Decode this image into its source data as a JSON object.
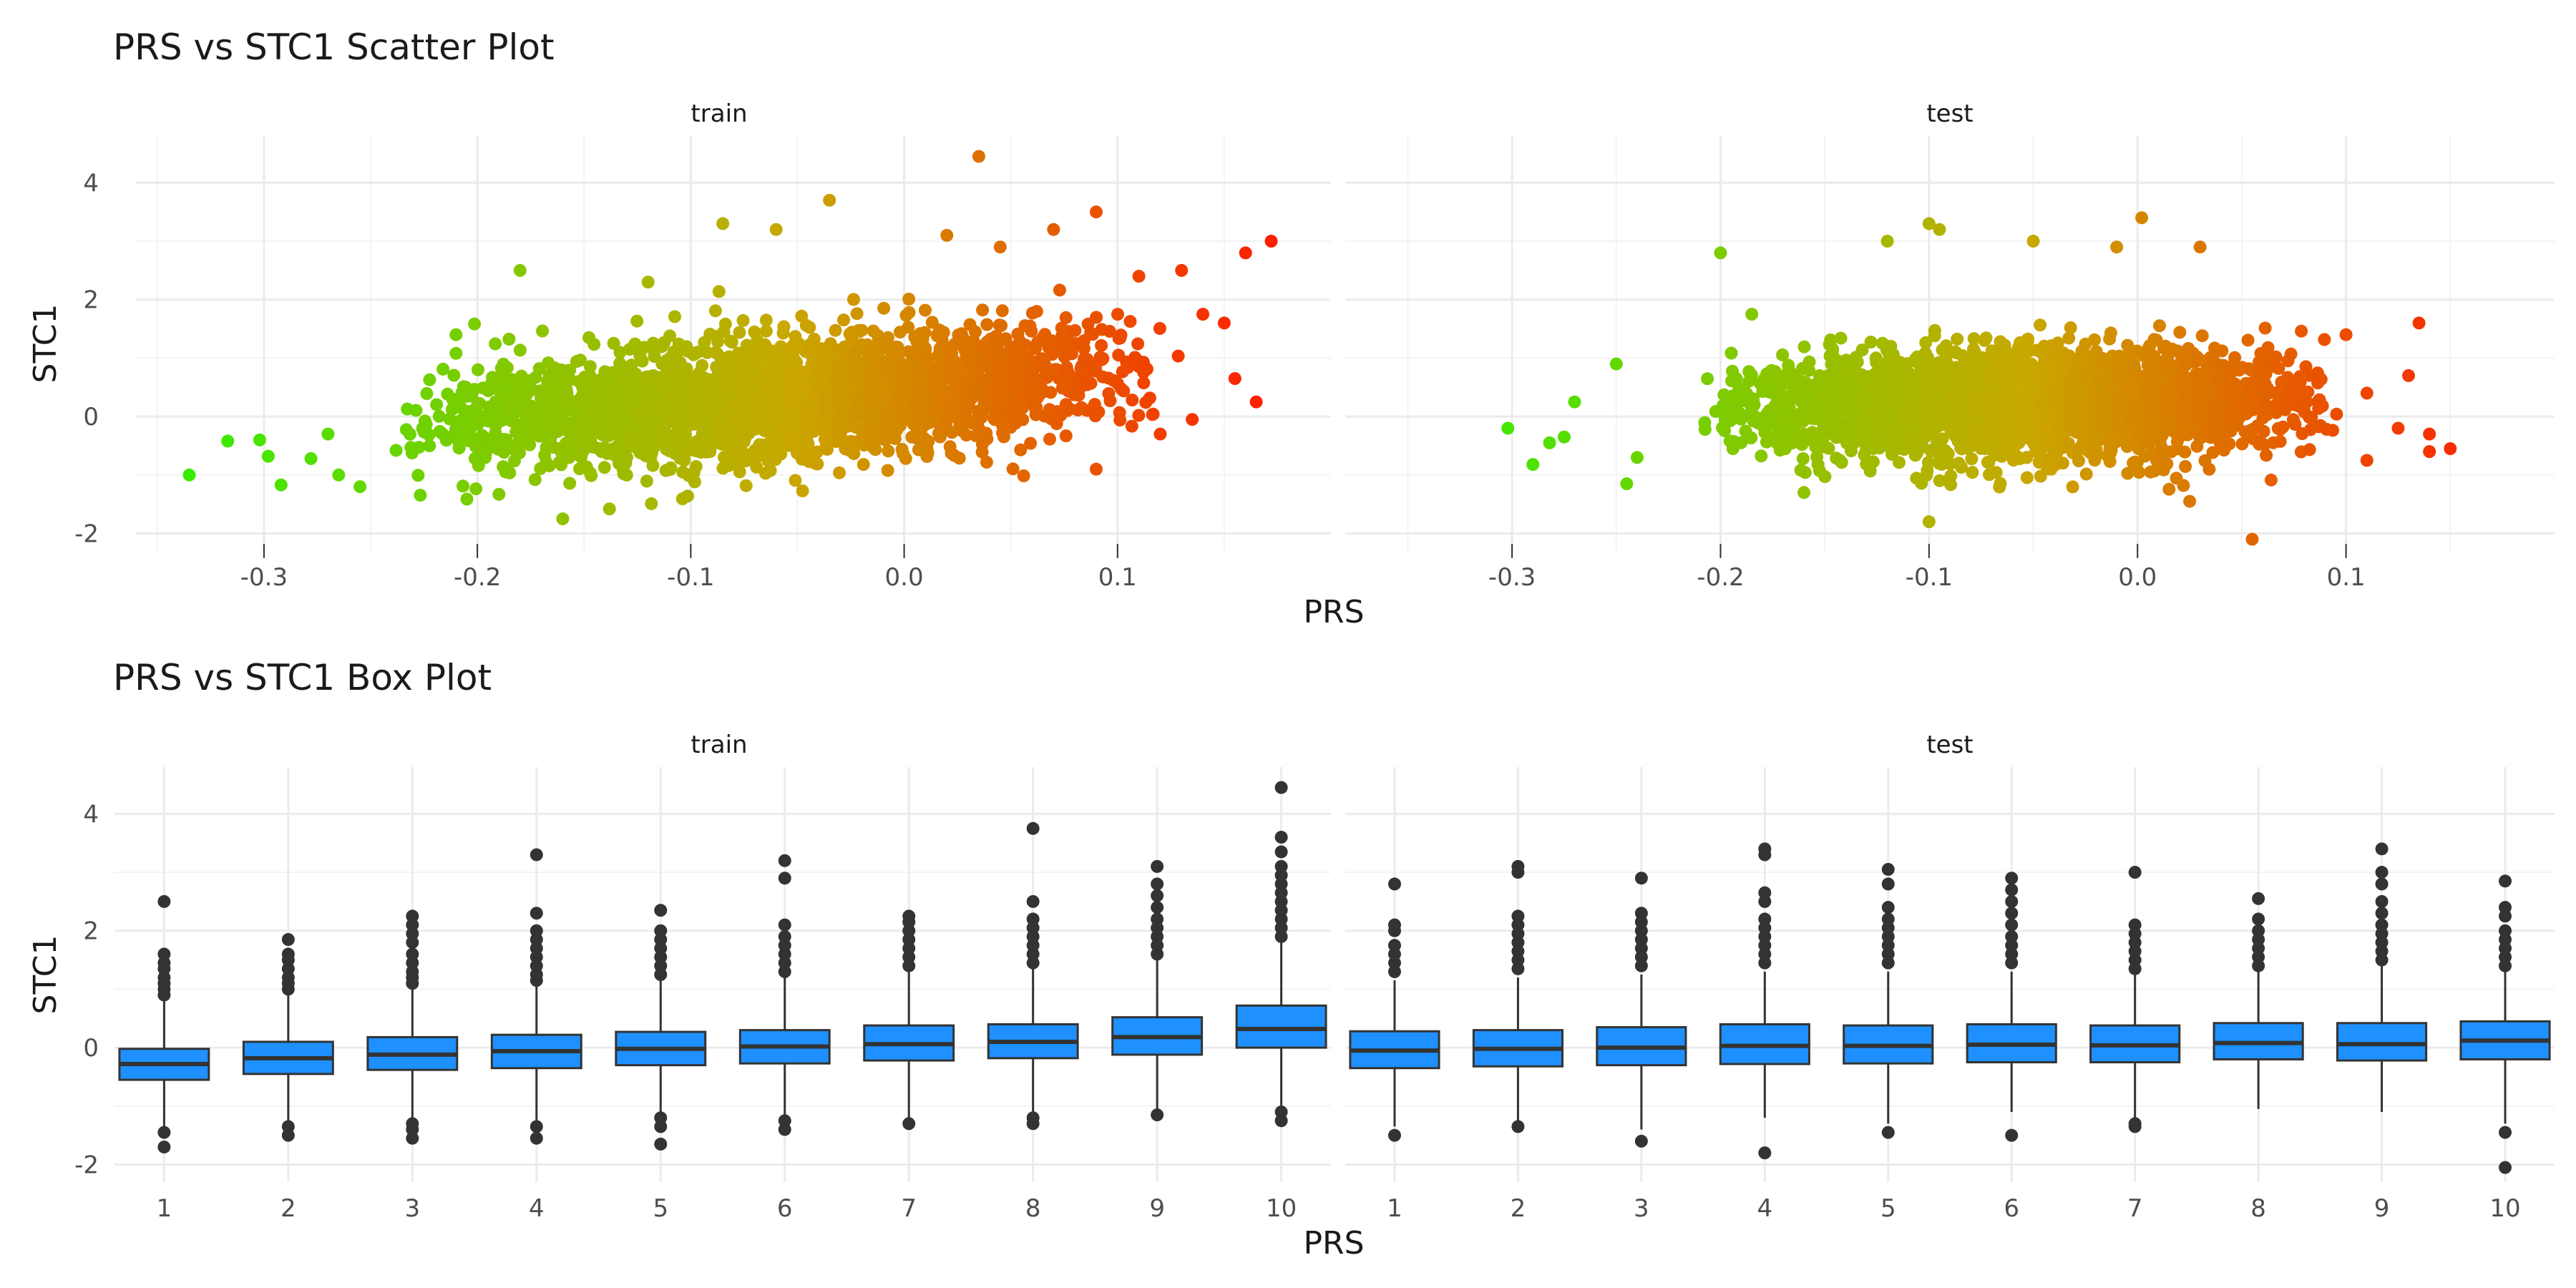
{
  "chart_data": [
    {
      "type": "scatter",
      "title": "PRS vs STC1 Scatter Plot",
      "xlabel": "PRS",
      "ylabel": "STC1",
      "color_low": "#33ee00",
      "color_mid": "#c8a800",
      "color_high": "#ff1a00",
      "grid": true,
      "legend": "none",
      "panels": [
        {
          "name": "train",
          "xlim": [
            -0.35,
            0.2
          ],
          "ylim": [
            -2.3,
            4.8
          ],
          "xticks": [
            -0.3,
            -0.2,
            -0.1,
            0.0,
            0.1
          ],
          "xtick_labels": [
            "-0.3",
            "-0.2",
            "-0.1",
            "0.0",
            "0.1"
          ],
          "yticks": [
            -2,
            0,
            2,
            4
          ],
          "ytick_labels": [
            "-2",
            "0",
            "2",
            "4"
          ],
          "cloud": {
            "x_min": -0.245,
            "x_max": 0.13,
            "low_at_min": -0.55,
            "low_at_max": 0.55,
            "spread": 0.95
          },
          "points": [
            {
              "x": -0.335,
              "y": -1.0
            },
            {
              "x": -0.317,
              "y": -0.42
            },
            {
              "x": -0.302,
              "y": -0.4
            },
            {
              "x": -0.298,
              "y": -0.68
            },
            {
              "x": -0.292,
              "y": -1.17
            },
            {
              "x": -0.278,
              "y": -0.72
            },
            {
              "x": -0.27,
              "y": -0.3
            },
            {
              "x": -0.265,
              "y": -1.0
            },
            {
              "x": -0.255,
              "y": -1.2
            },
            {
              "x": -0.21,
              "y": 1.4
            },
            {
              "x": -0.18,
              "y": 2.5
            },
            {
              "x": -0.16,
              "y": -1.75
            },
            {
              "x": -0.12,
              "y": 2.3
            },
            {
              "x": -0.085,
              "y": 3.3
            },
            {
              "x": -0.06,
              "y": 3.2
            },
            {
              "x": -0.035,
              "y": 3.7
            },
            {
              "x": 0.035,
              "y": 4.45
            },
            {
              "x": 0.02,
              "y": 3.1
            },
            {
              "x": 0.045,
              "y": 2.9
            },
            {
              "x": 0.07,
              "y": 3.2
            },
            {
              "x": 0.09,
              "y": 3.5
            },
            {
              "x": 0.11,
              "y": 2.4
            },
            {
              "x": 0.13,
              "y": 2.5
            },
            {
              "x": 0.12,
              "y": -0.3
            },
            {
              "x": 0.14,
              "y": 1.75
            },
            {
              "x": 0.15,
              "y": 1.6
            },
            {
              "x": 0.155,
              "y": 0.65
            },
            {
              "x": 0.16,
              "y": 2.8
            },
            {
              "x": 0.165,
              "y": 0.25
            },
            {
              "x": 0.172,
              "y": 3.0
            },
            {
              "x": 0.09,
              "y": -0.9
            },
            {
              "x": 0.135,
              "y": -0.05
            }
          ]
        },
        {
          "name": "test",
          "xlim": [
            -0.35,
            0.2
          ],
          "ylim": [
            -2.3,
            4.8
          ],
          "xticks": [
            -0.3,
            -0.2,
            -0.1,
            0.0,
            0.1
          ],
          "xtick_labels": [
            "-0.3",
            "-0.2",
            "-0.1",
            "0.0",
            "0.1"
          ],
          "yticks": [
            -2,
            0,
            2,
            4
          ],
          "ytick_labels": [
            "-2",
            "0",
            "2",
            "4"
          ],
          "cloud": {
            "x_min": -0.21,
            "x_max": 0.1,
            "low_at_min": -0.15,
            "low_at_max": 0.0,
            "spread": 0.85
          },
          "points": [
            {
              "x": -0.302,
              "y": -0.2
            },
            {
              "x": -0.29,
              "y": -0.82
            },
            {
              "x": -0.282,
              "y": -0.45
            },
            {
              "x": -0.275,
              "y": -0.35
            },
            {
              "x": -0.27,
              "y": 0.25
            },
            {
              "x": -0.25,
              "y": 0.9
            },
            {
              "x": -0.24,
              "y": -0.7
            },
            {
              "x": -0.245,
              "y": -1.15
            },
            {
              "x": -0.2,
              "y": 2.8
            },
            {
              "x": -0.185,
              "y": 1.75
            },
            {
              "x": -0.16,
              "y": -1.3
            },
            {
              "x": -0.12,
              "y": 3.0
            },
            {
              "x": -0.1,
              "y": 3.3
            },
            {
              "x": -0.095,
              "y": 3.2
            },
            {
              "x": -0.1,
              "y": -1.8
            },
            {
              "x": -0.05,
              "y": 3.0
            },
            {
              "x": -0.01,
              "y": 2.9
            },
            {
              "x": 0.002,
              "y": 3.4
            },
            {
              "x": 0.03,
              "y": 2.9
            },
            {
              "x": 0.055,
              "y": -2.1
            },
            {
              "x": 0.025,
              "y": -1.45
            },
            {
              "x": 0.1,
              "y": 1.4
            },
            {
              "x": 0.11,
              "y": 0.4
            },
            {
              "x": 0.125,
              "y": -0.2
            },
            {
              "x": 0.13,
              "y": 0.7
            },
            {
              "x": 0.135,
              "y": 1.6
            },
            {
              "x": 0.14,
              "y": -0.3
            },
            {
              "x": 0.14,
              "y": -0.6
            },
            {
              "x": 0.15,
              "y": -0.55
            },
            {
              "x": 0.11,
              "y": -0.75
            }
          ]
        }
      ]
    },
    {
      "type": "box",
      "title": "PRS vs STC1 Box Plot",
      "xlabel": "PRS",
      "ylabel": "STC1",
      "box_fill": "#1e90ff",
      "box_stroke": "#333333",
      "grid": true,
      "legend": "none",
      "panels": [
        {
          "name": "train",
          "ylim": [
            -2.3,
            4.8
          ],
          "yticks": [
            -2,
            0,
            2,
            4
          ],
          "ytick_labels": [
            "-2",
            "0",
            "2",
            "4"
          ],
          "categories": [
            "1",
            "2",
            "3",
            "4",
            "5",
            "6",
            "7",
            "8",
            "9",
            "10"
          ],
          "boxes": [
            {
              "q1": -0.55,
              "median": -0.28,
              "q3": -0.02,
              "whisker_low": -1.35,
              "whisker_high": 0.8,
              "outliers": [
                -1.45,
                -1.7,
                0.9,
                1.0,
                1.1,
                1.2,
                1.35,
                1.45,
                1.6,
                2.5
              ]
            },
            {
              "q1": -0.45,
              "median": -0.18,
              "q3": 0.1,
              "whisker_low": -1.25,
              "whisker_high": 0.9,
              "outliers": [
                -1.35,
                -1.5,
                1.0,
                1.1,
                1.2,
                1.35,
                1.5,
                1.6,
                1.85
              ]
            },
            {
              "q1": -0.38,
              "median": -0.12,
              "q3": 0.18,
              "whisker_low": -1.2,
              "whisker_high": 1.0,
              "outliers": [
                -1.3,
                -1.4,
                -1.55,
                1.1,
                1.2,
                1.3,
                1.45,
                1.6,
                1.8,
                1.95,
                2.1,
                2.25
              ]
            },
            {
              "q1": -0.35,
              "median": -0.06,
              "q3": 0.22,
              "whisker_low": -1.3,
              "whisker_high": 1.05,
              "outliers": [
                -1.35,
                -1.55,
                1.15,
                1.25,
                1.4,
                1.55,
                1.7,
                1.85,
                2.0,
                2.3,
                3.3
              ]
            },
            {
              "q1": -0.3,
              "median": -0.02,
              "q3": 0.27,
              "whisker_low": -1.1,
              "whisker_high": 1.15,
              "outliers": [
                -1.2,
                -1.35,
                -1.65,
                1.25,
                1.4,
                1.55,
                1.7,
                1.85,
                2.0,
                2.35
              ]
            },
            {
              "q1": -0.27,
              "median": 0.02,
              "q3": 0.3,
              "whisker_low": -1.15,
              "whisker_high": 1.2,
              "outliers": [
                -1.25,
                -1.4,
                1.3,
                1.45,
                1.6,
                1.75,
                1.9,
                2.1,
                2.9,
                3.2
              ]
            },
            {
              "q1": -0.22,
              "median": 0.06,
              "q3": 0.38,
              "whisker_low": -1.25,
              "whisker_high": 1.3,
              "outliers": [
                -1.3,
                1.4,
                1.55,
                1.7,
                1.85,
                2.0,
                2.15,
                2.25
              ]
            },
            {
              "q1": -0.18,
              "median": 0.1,
              "q3": 0.4,
              "whisker_low": -1.1,
              "whisker_high": 1.35,
              "outliers": [
                -1.2,
                -1.3,
                1.45,
                1.6,
                1.75,
                1.9,
                2.05,
                2.2,
                2.5,
                3.75
              ]
            },
            {
              "q1": -0.12,
              "median": 0.18,
              "q3": 0.52,
              "whisker_low": -1.05,
              "whisker_high": 1.5,
              "outliers": [
                -1.15,
                1.6,
                1.75,
                1.9,
                2.05,
                2.2,
                2.4,
                2.6,
                2.8,
                3.1
              ]
            },
            {
              "q1": 0.0,
              "median": 0.32,
              "q3": 0.72,
              "whisker_low": -1.0,
              "whisker_high": 1.8,
              "outliers": [
                -1.1,
                -1.25,
                1.9,
                2.05,
                2.2,
                2.35,
                2.5,
                2.65,
                2.8,
                2.95,
                3.1,
                3.35,
                3.6,
                4.45
              ]
            }
          ]
        },
        {
          "name": "test",
          "ylim": [
            -2.3,
            4.8
          ],
          "yticks": [
            -2,
            0,
            2,
            4
          ],
          "ytick_labels": [
            "-2",
            "0",
            "2",
            "4"
          ],
          "categories": [
            "1",
            "2",
            "3",
            "4",
            "5",
            "6",
            "7",
            "8",
            "9",
            "10"
          ],
          "boxes": [
            {
              "q1": -0.35,
              "median": -0.05,
              "q3": 0.28,
              "whisker_low": -1.35,
              "whisker_high": 1.15,
              "outliers": [
                -1.5,
                1.3,
                1.45,
                1.6,
                1.75,
                2.0,
                2.1,
                2.8
              ]
            },
            {
              "q1": -0.32,
              "median": -0.02,
              "q3": 0.3,
              "whisker_low": -1.3,
              "whisker_high": 1.2,
              "outliers": [
                -1.35,
                1.35,
                1.5,
                1.65,
                1.8,
                1.95,
                2.1,
                2.25,
                3.0,
                3.1
              ]
            },
            {
              "q1": -0.3,
              "median": 0.0,
              "q3": 0.35,
              "whisker_low": -1.4,
              "whisker_high": 1.25,
              "outliers": [
                -1.6,
                1.4,
                1.55,
                1.7,
                1.85,
                2.0,
                2.15,
                2.3,
                2.9
              ]
            },
            {
              "q1": -0.28,
              "median": 0.03,
              "q3": 0.4,
              "whisker_low": -1.2,
              "whisker_high": 1.3,
              "outliers": [
                -1.8,
                1.45,
                1.6,
                1.75,
                1.9,
                2.05,
                2.2,
                2.5,
                2.65,
                3.3,
                3.4
              ]
            },
            {
              "q1": -0.27,
              "median": 0.03,
              "q3": 0.38,
              "whisker_low": -1.3,
              "whisker_high": 1.3,
              "outliers": [
                -1.45,
                1.45,
                1.6,
                1.75,
                1.9,
                2.05,
                2.2,
                2.4,
                2.8,
                3.05
              ]
            },
            {
              "q1": -0.25,
              "median": 0.05,
              "q3": 0.4,
              "whisker_low": -1.1,
              "whisker_high": 1.3,
              "outliers": [
                -1.5,
                1.45,
                1.6,
                1.75,
                1.9,
                2.1,
                2.3,
                2.5,
                2.7,
                2.9
              ]
            },
            {
              "q1": -0.25,
              "median": 0.04,
              "q3": 0.38,
              "whisker_low": -1.2,
              "whisker_high": 1.25,
              "outliers": [
                -1.3,
                -1.35,
                1.35,
                1.5,
                1.65,
                1.8,
                1.95,
                2.1,
                3.0
              ]
            },
            {
              "q1": -0.2,
              "median": 0.08,
              "q3": 0.42,
              "whisker_low": -1.05,
              "whisker_high": 1.3,
              "outliers": [
                1.4,
                1.55,
                1.7,
                1.85,
                2.0,
                2.2,
                2.55
              ]
            },
            {
              "q1": -0.22,
              "median": 0.06,
              "q3": 0.42,
              "whisker_low": -1.1,
              "whisker_high": 1.4,
              "outliers": [
                1.5,
                1.65,
                1.8,
                1.95,
                2.1,
                2.3,
                2.5,
                2.8,
                3.0,
                3.4
              ]
            },
            {
              "q1": -0.2,
              "median": 0.12,
              "q3": 0.45,
              "whisker_low": -1.3,
              "whisker_high": 1.3,
              "outliers": [
                -1.45,
                -2.05,
                1.4,
                1.55,
                1.7,
                1.85,
                2.0,
                2.25,
                2.4,
                2.85
              ]
            }
          ]
        }
      ]
    }
  ]
}
